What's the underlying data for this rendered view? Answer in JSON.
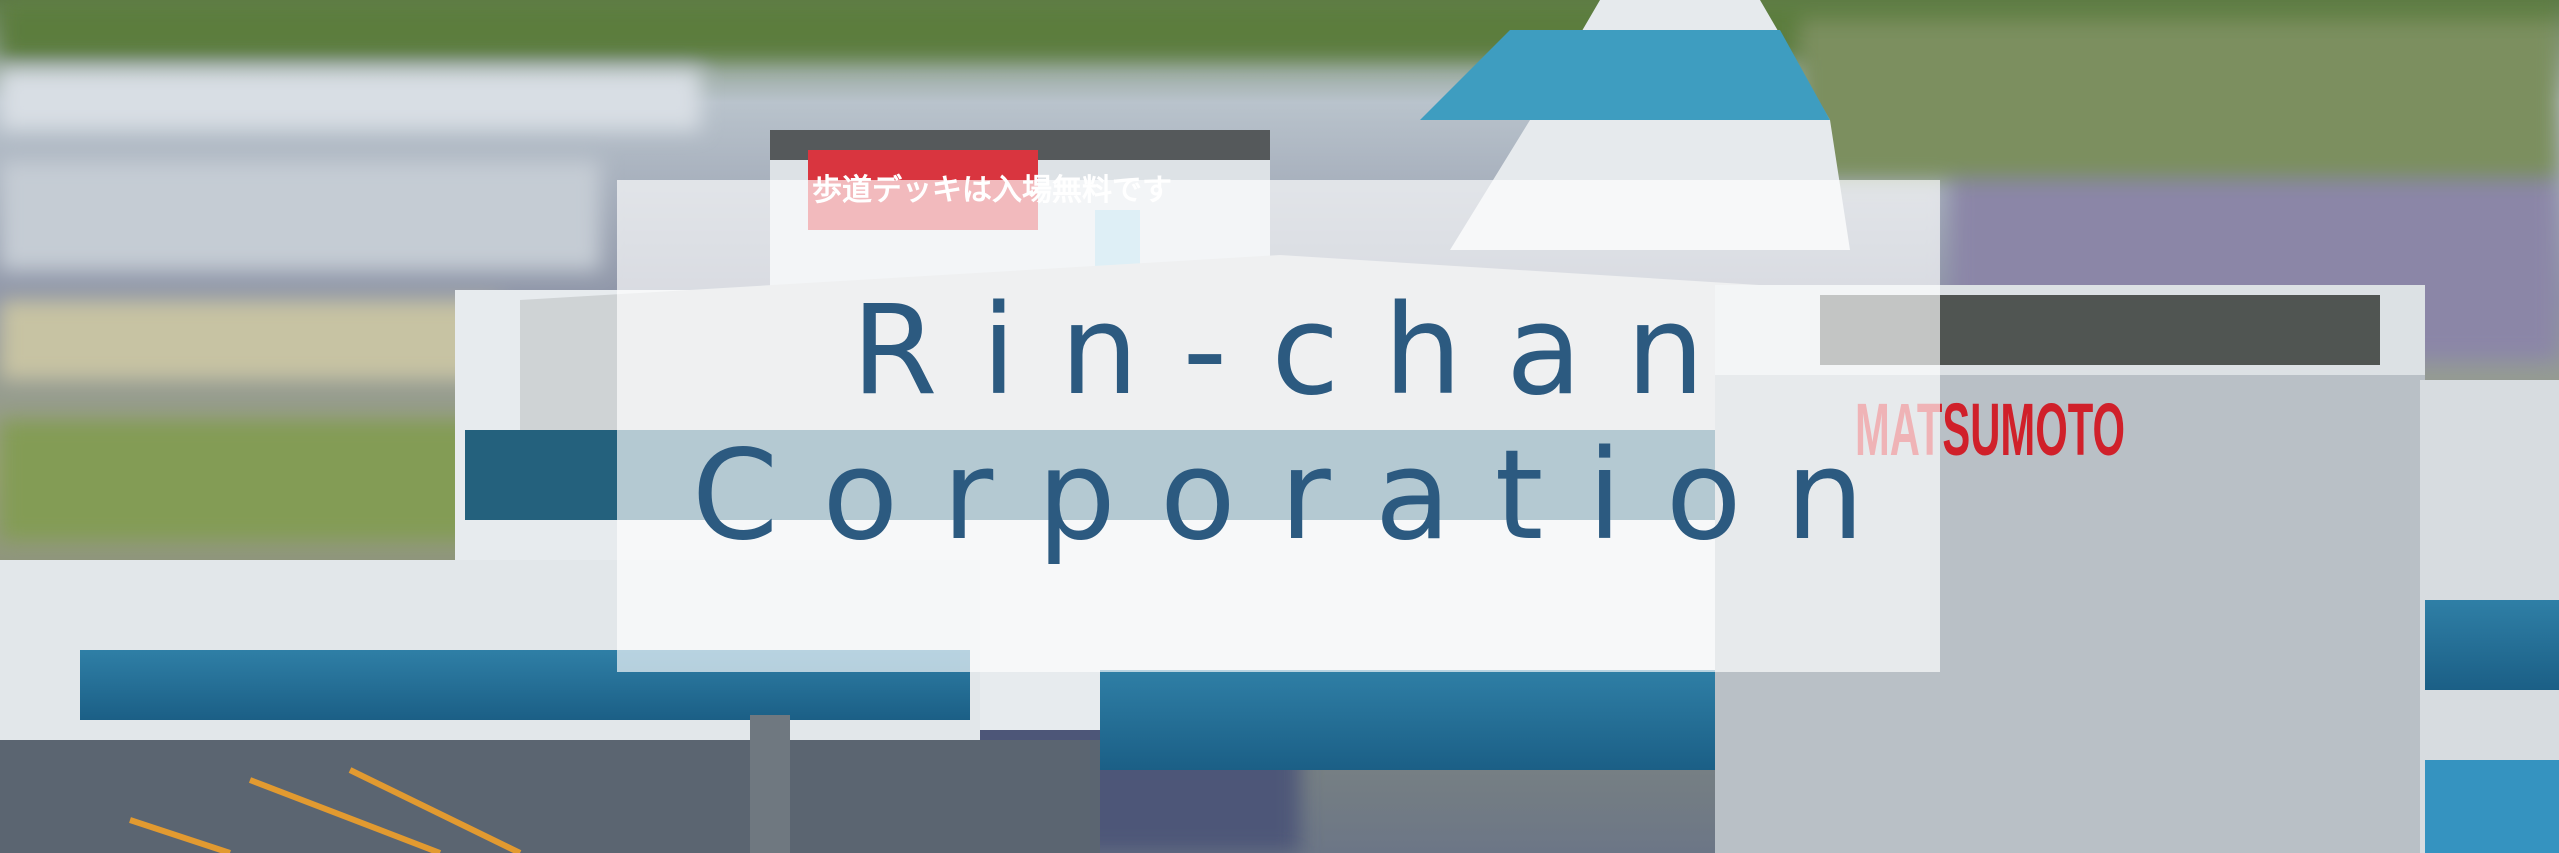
{
  "banner": {
    "title_lines": [
      "Rin-chan",
      "Corporation"
    ],
    "scene_signs": [
      "MATSUMOTO",
      "歩道デッキは入場無料です"
    ]
  }
}
